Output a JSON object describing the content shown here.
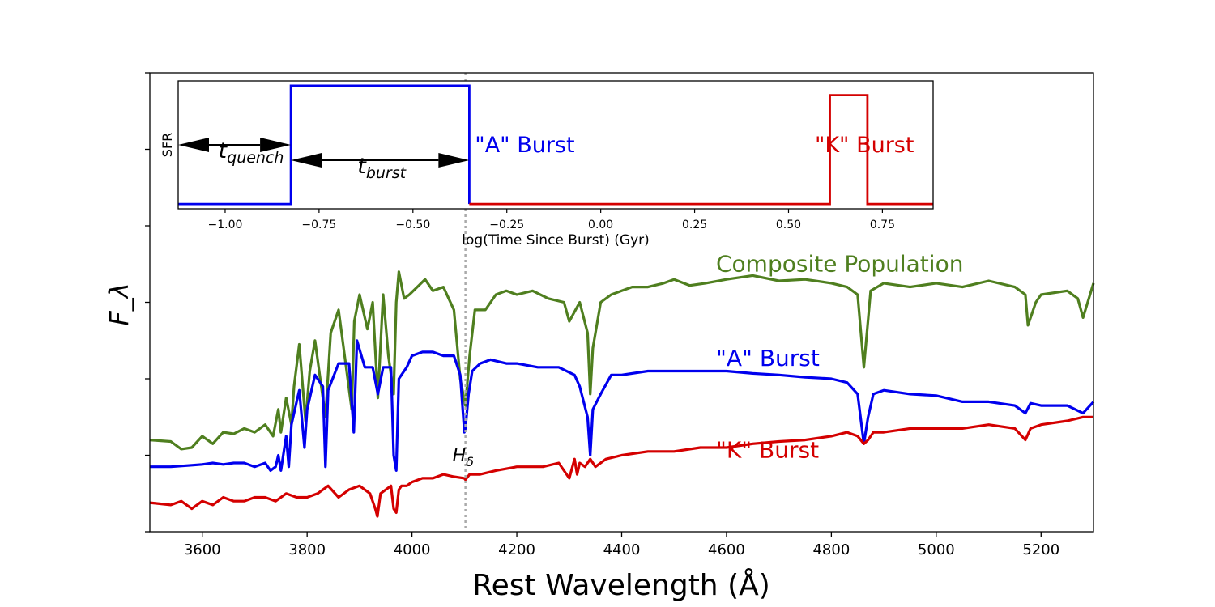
{
  "chart_data": [
    {
      "type": "line",
      "title": "",
      "xlabel": "Rest Wavelength (Å)",
      "ylabel": "F_λ",
      "xlim": [
        3500,
        5300
      ],
      "ylim": [
        0,
        6
      ],
      "xticks": [
        3600,
        3800,
        4000,
        4200,
        4400,
        4600,
        4800,
        5000,
        5200
      ],
      "yticks": [
        0,
        1,
        2,
        3,
        4,
        5,
        6
      ],
      "grid": false,
      "marker_line": {
        "x": 4102,
        "label_main": "H",
        "label_sub": "δ"
      },
      "series": [
        {
          "name": "Composite Population",
          "color": "#4f7f1f",
          "x": [
            3500,
            3540,
            3560,
            3580,
            3600,
            3620,
            3640,
            3660,
            3680,
            3700,
            3720,
            3735,
            3745,
            3750,
            3760,
            3770,
            3775,
            3785,
            3797,
            3805,
            3815,
            3835,
            3845,
            3860,
            3885,
            3890,
            3900,
            3915,
            3925,
            3935,
            3945,
            3955,
            3965,
            3970,
            3975,
            3985,
            3995,
            4010,
            4025,
            4040,
            4060,
            4080,
            4092,
            4102,
            4110,
            4120,
            4140,
            4160,
            4180,
            4200,
            4230,
            4260,
            4290,
            4300,
            4320,
            4335,
            4340,
            4345,
            4360,
            4380,
            4400,
            4420,
            4450,
            4480,
            4500,
            4530,
            4560,
            4600,
            4650,
            4700,
            4750,
            4800,
            4830,
            4850,
            4862,
            4875,
            4900,
            4950,
            5000,
            5050,
            5100,
            5150,
            5170,
            5175,
            5190,
            5200,
            5250,
            5270,
            5280,
            5300
          ],
          "y": [
            1.2,
            1.18,
            1.08,
            1.1,
            1.25,
            1.15,
            1.3,
            1.28,
            1.35,
            1.3,
            1.4,
            1.25,
            1.6,
            1.3,
            1.75,
            1.4,
            1.9,
            2.45,
            1.45,
            2.1,
            2.5,
            1.5,
            2.6,
            2.9,
            1.6,
            2.75,
            3.1,
            2.65,
            3.0,
            1.75,
            3.1,
            2.3,
            1.8,
            3.0,
            3.4,
            3.05,
            3.1,
            3.2,
            3.3,
            3.15,
            3.2,
            2.9,
            2.0,
            1.65,
            2.3,
            2.9,
            2.9,
            3.1,
            3.15,
            3.1,
            3.15,
            3.05,
            3.0,
            2.75,
            3.0,
            2.6,
            1.8,
            2.4,
            3.0,
            3.1,
            3.15,
            3.2,
            3.2,
            3.25,
            3.3,
            3.22,
            3.25,
            3.3,
            3.35,
            3.28,
            3.3,
            3.25,
            3.2,
            3.1,
            2.15,
            3.15,
            3.25,
            3.2,
            3.25,
            3.2,
            3.28,
            3.2,
            3.1,
            2.7,
            3.0,
            3.1,
            3.15,
            3.05,
            2.8,
            3.25
          ]
        },
        {
          "name": "\"A\" Burst",
          "color": "#0000ee",
          "x": [
            3500,
            3540,
            3580,
            3600,
            3620,
            3640,
            3660,
            3680,
            3700,
            3720,
            3730,
            3740,
            3745,
            3750,
            3760,
            3765,
            3770,
            3780,
            3785,
            3795,
            3800,
            3815,
            3830,
            3835,
            3840,
            3860,
            3880,
            3889,
            3895,
            3910,
            3925,
            3935,
            3945,
            3960,
            3965,
            3970,
            3975,
            3990,
            4000,
            4020,
            4040,
            4060,
            4080,
            4092,
            4100,
            4102,
            4108,
            4115,
            4130,
            4150,
            4180,
            4200,
            4240,
            4280,
            4310,
            4320,
            4335,
            4340,
            4345,
            4360,
            4380,
            4400,
            4450,
            4500,
            4550,
            4600,
            4650,
            4700,
            4750,
            4800,
            4830,
            4850,
            4862,
            4870,
            4880,
            4900,
            4950,
            5000,
            5050,
            5100,
            5150,
            5170,
            5180,
            5200,
            5250,
            5280,
            5300
          ],
          "y": [
            0.85,
            0.85,
            0.87,
            0.88,
            0.9,
            0.88,
            0.9,
            0.9,
            0.85,
            0.9,
            0.8,
            0.85,
            1.0,
            0.8,
            1.25,
            0.85,
            1.4,
            1.7,
            1.85,
            1.1,
            1.6,
            2.05,
            1.9,
            0.85,
            1.85,
            2.2,
            2.2,
            1.3,
            2.5,
            2.15,
            2.15,
            1.8,
            2.15,
            2.15,
            1.0,
            0.8,
            2.0,
            2.15,
            2.3,
            2.35,
            2.35,
            2.3,
            2.3,
            2.05,
            1.3,
            1.35,
            1.8,
            2.1,
            2.2,
            2.25,
            2.2,
            2.2,
            2.15,
            2.15,
            2.05,
            1.9,
            1.5,
            1.0,
            1.6,
            1.8,
            2.05,
            2.05,
            2.1,
            2.1,
            2.1,
            2.1,
            2.07,
            2.05,
            2.02,
            2.0,
            1.95,
            1.8,
            1.15,
            1.5,
            1.8,
            1.85,
            1.8,
            1.78,
            1.7,
            1.7,
            1.65,
            1.55,
            1.68,
            1.65,
            1.65,
            1.55,
            1.7
          ]
        },
        {
          "name": "\"K\" Burst",
          "color": "#d40000",
          "x": [
            3500,
            3540,
            3560,
            3580,
            3600,
            3620,
            3640,
            3660,
            3680,
            3700,
            3720,
            3740,
            3760,
            3780,
            3800,
            3820,
            3840,
            3860,
            3880,
            3900,
            3920,
            3930,
            3934,
            3940,
            3950,
            3960,
            3965,
            3970,
            3975,
            3980,
            3990,
            4000,
            4020,
            4040,
            4060,
            4080,
            4100,
            4102,
            4110,
            4130,
            4160,
            4200,
            4250,
            4280,
            4300,
            4310,
            4315,
            4320,
            4330,
            4340,
            4350,
            4370,
            4400,
            4450,
            4500,
            4550,
            4600,
            4650,
            4700,
            4750,
            4800,
            4830,
            4850,
            4862,
            4870,
            4880,
            4900,
            4950,
            5000,
            5050,
            5100,
            5150,
            5170,
            5180,
            5200,
            5250,
            5280,
            5300
          ],
          "y": [
            0.38,
            0.35,
            0.4,
            0.3,
            0.4,
            0.35,
            0.45,
            0.4,
            0.4,
            0.45,
            0.45,
            0.4,
            0.5,
            0.45,
            0.45,
            0.5,
            0.6,
            0.45,
            0.55,
            0.6,
            0.5,
            0.3,
            0.2,
            0.5,
            0.55,
            0.6,
            0.3,
            0.25,
            0.55,
            0.6,
            0.6,
            0.65,
            0.7,
            0.7,
            0.75,
            0.72,
            0.7,
            0.68,
            0.75,
            0.75,
            0.8,
            0.85,
            0.85,
            0.9,
            0.7,
            0.95,
            0.75,
            0.9,
            0.85,
            0.95,
            0.85,
            0.95,
            1.0,
            1.05,
            1.05,
            1.1,
            1.1,
            1.15,
            1.18,
            1.2,
            1.25,
            1.3,
            1.25,
            1.15,
            1.2,
            1.3,
            1.3,
            1.35,
            1.35,
            1.35,
            1.4,
            1.35,
            1.2,
            1.35,
            1.4,
            1.45,
            1.5,
            1.5
          ]
        }
      ],
      "annotations": [
        {
          "text": "Composite Population",
          "x": 4580,
          "y": 3.4,
          "color": "#4f7f1f"
        },
        {
          "text": "\"A\" Burst",
          "x": 4580,
          "y": 2.17,
          "color": "#0000ee"
        },
        {
          "text": "\"K\" Burst",
          "x": 4580,
          "y": 0.97,
          "color": "#d40000"
        }
      ]
    },
    {
      "type": "line",
      "title": "",
      "xlabel": "log(Time Since Burst) (Gyr)",
      "ylabel": "SFR",
      "xlim": [
        -1.125,
        0.885
      ],
      "ylim": [
        -0.04,
        1.04
      ],
      "xtick_labels": [
        "−1.00",
        "−0.75",
        "−0.50",
        "−0.25",
        "0.00",
        "0.25",
        "0.50",
        "0.75"
      ],
      "xticks": [
        -1.0,
        -0.75,
        -0.5,
        -0.25,
        0.0,
        0.25,
        0.5,
        0.75
      ],
      "grid": false,
      "series": [
        {
          "name": "\"A\" Burst",
          "color": "#0000ee",
          "x": [
            -1.125,
            -0.825,
            -0.825,
            -0.35,
            -0.35
          ],
          "y": [
            0,
            0,
            1,
            1,
            0
          ]
        },
        {
          "name": "\"K\" Burst",
          "color": "#d40000",
          "x": [
            -0.35,
            0.61,
            0.61,
            0.71,
            0.71,
            0.885
          ],
          "y": [
            0,
            0,
            0.92,
            0.92,
            0,
            0
          ]
        }
      ],
      "annotations": [
        {
          "text": "\"A\" Burst",
          "x": -0.335,
          "y": 0.5,
          "color": "#0000ee"
        },
        {
          "text": "\"K\" Burst",
          "x": 0.57,
          "y": 0.5,
          "color": "#d40000"
        }
      ],
      "arrows": [
        {
          "label_main": "t",
          "label_sub": "quench",
          "from": -1.125,
          "to": -0.825,
          "y": 0.5
        },
        {
          "label_main": "t",
          "label_sub": "burst",
          "from": -0.825,
          "to": -0.35,
          "y": 0.37
        }
      ]
    }
  ]
}
